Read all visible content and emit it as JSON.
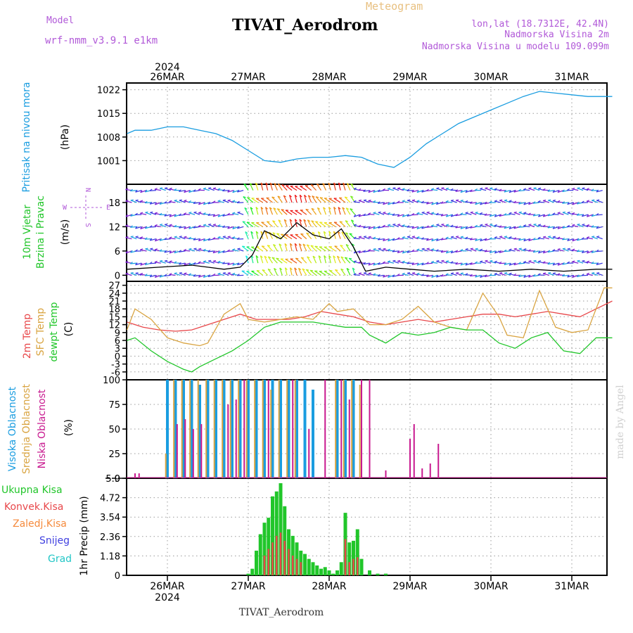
{
  "header": {
    "model_label": "Model",
    "model_name": "wrf-nmm_v3.9.1  e1km",
    "meteogram_label": "Meteogram",
    "title": "TIVAT_Aerodrom",
    "lonlat": "lon,lat (18.7312E, 42.4N)",
    "elev": "Nadmorska Visina 2m",
    "model_elev": "Nadmorska Visina u modelu 109.099m",
    "footer_title": "TIVAT_Aerodrom",
    "watermark": "made by Angel"
  },
  "colors": {
    "pressure": "#1a9de0",
    "wind_speed": "#000000",
    "t2m": "#e8474a",
    "tsfc": "#d9a441",
    "dewpt": "#21c62a",
    "cloud_high": "#1a9de0",
    "cloud_mid": "#d9a441",
    "cloud_low": "#c8198f",
    "precip_total": "#21c62a",
    "precip_conv": "#e8474a",
    "precip_ice": "#f58a3c",
    "precip_snow": "#4040e0",
    "precip_grad": "#21c6c6"
  },
  "xaxis": {
    "top_year": "2024",
    "bottom_year": "2024",
    "day_labels": [
      "26MAR",
      "27MAR",
      "28MAR",
      "29MAR",
      "30MAR",
      "31MAR"
    ]
  },
  "legend_icon": {
    "n": "N",
    "s": "S",
    "w": "W",
    "e": "E"
  },
  "chart_data": [
    {
      "type": "line",
      "id": "pressure",
      "ylabel_main": "Pritisak na nivou mora",
      "ylabel_unit": "(hPa)",
      "ylim": [
        994,
        1024
      ],
      "yticks": [
        "1001",
        "1008",
        "1015",
        "1022"
      ],
      "series": [
        {
          "x": [
            0,
            0.1,
            0.3,
            0.5,
            0.7,
            0.9,
            1.1,
            1.3,
            1.5,
            1.7,
            1.9,
            2.1,
            2.3,
            2.5,
            2.7,
            2.9,
            3.1,
            3.3,
            3.5,
            3.7,
            3.9,
            4.1,
            4.3,
            4.5,
            4.7,
            4.9,
            5.1,
            5.3,
            5.5,
            5.7,
            5.9,
            6.0
          ],
          "y": [
            1009,
            1010,
            1010,
            1011,
            1011,
            1010,
            1009,
            1007,
            1004,
            1001,
            1000.5,
            1001.5,
            1002,
            1002,
            1002.5,
            1002,
            1000,
            999,
            1002,
            1006,
            1009,
            1012,
            1014,
            1016,
            1018,
            1020,
            1021.5,
            1021,
            1020.5,
            1020,
            1020,
            1020
          ]
        }
      ]
    },
    {
      "type": "line",
      "id": "wind",
      "ylabel_main": "10m Vjetar",
      "ylabel_sub": "Brzina i Pravac",
      "ylabel_unit": "(m/s)",
      "ylim": [
        -1.5,
        22.5
      ],
      "yticks": [
        "0",
        "6",
        "12",
        "18"
      ],
      "series": [
        {
          "x": [
            0,
            0.4,
            0.8,
            1.0,
            1.2,
            1.4,
            1.55,
            1.7,
            1.9,
            2.1,
            2.3,
            2.5,
            2.65,
            2.8,
            2.95,
            3.2,
            3.5,
            3.8,
            4.2,
            4.6,
            5.0,
            5.4,
            5.8,
            6.0
          ],
          "y": [
            1.5,
            2,
            2.5,
            2,
            1.5,
            2,
            5,
            11,
            9,
            13,
            10,
            9,
            11.5,
            7,
            1,
            2,
            1.5,
            1,
            1.5,
            1,
            1.5,
            1,
            1.5,
            1.5
          ]
        }
      ]
    },
    {
      "type": "line",
      "id": "temp",
      "ylabel_main": "2m Temp",
      "ylabel_sfc": "SFC Temp",
      "ylabel_dew": "dewpt Temp",
      "ylabel_unit": "(C)",
      "ylim": [
        -9,
        28.5
      ],
      "yticks": [
        "-6",
        "-3",
        "0",
        "3",
        "6",
        "9",
        "12",
        "15",
        "18",
        "21",
        "24",
        "27"
      ],
      "series": [
        {
          "x": [
            0,
            0.2,
            0.4,
            0.6,
            0.8,
            1.0,
            1.2,
            1.4,
            1.6,
            1.8,
            2.0,
            2.2,
            2.4,
            2.6,
            2.8,
            3.0,
            3.2,
            3.4,
            3.6,
            3.8,
            4.0,
            4.2,
            4.4,
            4.6,
            4.8,
            5.0,
            5.2,
            5.4,
            5.6,
            5.8,
            6.0
          ],
          "y": [
            13,
            11,
            10,
            9.5,
            10,
            12,
            14,
            16,
            14,
            14,
            14,
            15,
            17,
            16,
            15,
            13,
            12,
            13,
            14,
            13,
            14,
            15,
            16,
            16,
            15,
            16,
            17,
            16,
            15,
            18,
            21
          ]
        },
        {
          "x": [
            0,
            0.1,
            0.3,
            0.5,
            0.7,
            0.9,
            1.0,
            1.2,
            1.4,
            1.5,
            1.7,
            1.9,
            2.1,
            2.3,
            2.5,
            2.6,
            2.8,
            3.0,
            3.2,
            3.4,
            3.6,
            3.8,
            4.0,
            4.2,
            4.4,
            4.6,
            4.7,
            4.9,
            5.1,
            5.3,
            5.5,
            5.7,
            5.9,
            6.0
          ],
          "y": [
            10,
            18,
            14,
            7,
            5,
            4,
            5,
            16,
            20,
            14,
            13,
            14,
            15,
            14,
            20,
            17,
            18,
            12,
            12,
            14,
            19,
            13,
            11,
            10,
            24,
            15,
            8,
            7,
            25,
            11,
            9,
            10,
            26,
            26
          ]
        },
        {
          "x": [
            0,
            0.1,
            0.3,
            0.5,
            0.7,
            0.8,
            0.9,
            1.1,
            1.3,
            1.5,
            1.7,
            1.9,
            2.1,
            2.3,
            2.5,
            2.7,
            2.9,
            3.0,
            3.2,
            3.4,
            3.6,
            3.8,
            4.0,
            4.2,
            4.4,
            4.6,
            4.8,
            5.0,
            5.2,
            5.4,
            5.6,
            5.8,
            6.0
          ],
          "y": [
            6,
            7,
            2,
            -2,
            -5,
            -6,
            -4,
            -1,
            2,
            6,
            11,
            13,
            13,
            13,
            12,
            11,
            11,
            8,
            5,
            9,
            8,
            9,
            11,
            10,
            10,
            5,
            3,
            7,
            9,
            2,
            1,
            7,
            7
          ]
        }
      ]
    },
    {
      "type": "bar",
      "id": "clouds",
      "ylabel_high": "Visoka Oblacnost",
      "ylabel_mid": "Srednja Oblacnost",
      "ylabel_low": "Niska Oblacnost",
      "ylabel_unit": "(%)",
      "ylim": [
        0,
        100
      ],
      "yticks": [
        "0",
        "25",
        "50",
        "75",
        "100"
      ],
      "series": [
        {
          "name": "Visoka Oblacnost",
          "x": [
            0.5,
            0.6,
            0.7,
            0.8,
            0.9,
            1.0,
            1.1,
            1.2,
            1.3,
            1.4,
            1.5,
            1.6,
            1.7,
            1.8,
            1.9,
            2.0,
            2.1,
            2.2,
            2.3,
            2.6,
            2.7,
            2.8
          ],
          "values": [
            100,
            100,
            100,
            100,
            95,
            100,
            100,
            100,
            100,
            100,
            100,
            100,
            100,
            100,
            100,
            100,
            100,
            100,
            90,
            100,
            100,
            100
          ]
        },
        {
          "name": "Srednja Oblacnost",
          "x": [
            0.48,
            0.58,
            0.68,
            0.78,
            0.88,
            0.98,
            1.08,
            1.18,
            1.28,
            1.38,
            1.48,
            1.58,
            1.68,
            1.78,
            1.88,
            1.98,
            2.08,
            2.58,
            2.68,
            2.78,
            2.88
          ],
          "values": [
            25,
            100,
            100,
            100,
            100,
            100,
            100,
            100,
            100,
            100,
            100,
            100,
            100,
            90,
            100,
            100,
            100,
            100,
            100,
            100,
            95
          ]
        },
        {
          "name": "Niska Oblacnost",
          "x": [
            0.1,
            0.15,
            0.62,
            0.72,
            0.82,
            0.92,
            1.25,
            1.35,
            1.45,
            1.75,
            2.05,
            2.25,
            2.45,
            2.65,
            2.75,
            2.9,
            3.0,
            3.2,
            3.5,
            3.55,
            3.65,
            3.75,
            3.85
          ],
          "values": [
            5,
            5,
            55,
            60,
            50,
            55,
            75,
            80,
            100,
            100,
            100,
            50,
            100,
            100,
            80,
            100,
            100,
            8,
            40,
            55,
            10,
            15,
            35
          ]
        }
      ]
    },
    {
      "type": "bar",
      "id": "precip",
      "legend": [
        "Ukupna  Kisa",
        "Konvek.Kisa",
        "Zaledj.Kisa",
        "Snijeg",
        "Grad"
      ],
      "ylabel_main": "1hr Precip",
      "ylabel_unit": "(mm)",
      "ylim": [
        0,
        5.9
      ],
      "yticks": [
        "0",
        "1.18",
        "2.36",
        "3.54",
        "4.72",
        "5.9"
      ],
      "series": [
        {
          "name": "Ukupna  Kisa",
          "x": [
            1.5,
            1.55,
            1.6,
            1.65,
            1.7,
            1.75,
            1.8,
            1.85,
            1.9,
            1.95,
            2.0,
            2.05,
            2.1,
            2.15,
            2.2,
            2.25,
            2.3,
            2.35,
            2.4,
            2.45,
            2.5,
            2.55,
            2.6,
            2.65,
            2.7,
            2.75,
            2.8,
            2.85,
            2.9,
            3.0,
            3.1,
            3.2
          ],
          "values": [
            0.1,
            0.4,
            1.5,
            2.5,
            3.2,
            3.5,
            4.8,
            5.1,
            5.6,
            4.2,
            2.8,
            2.4,
            2.0,
            1.5,
            1.3,
            1.0,
            0.8,
            0.6,
            0.4,
            0.5,
            0.3,
            0.1,
            0.3,
            0.8,
            3.8,
            2.0,
            2.1,
            2.8,
            1.0,
            0.3,
            0.1,
            0.1
          ]
        },
        {
          "name": "Konvek.Kisa",
          "x": [
            1.7,
            1.75,
            1.8,
            1.85,
            1.9,
            1.95,
            2.0,
            2.05,
            2.1,
            2.15,
            2.7,
            2.75,
            2.8,
            2.85
          ],
          "values": [
            1.2,
            1.6,
            2.0,
            2.4,
            2.6,
            2.1,
            1.6,
            1.2,
            1.0,
            0.8,
            2.2,
            0.8,
            1.0,
            1.1
          ]
        },
        {
          "name": "Zaledj.Kisa",
          "x": [],
          "values": []
        },
        {
          "name": "Snijeg",
          "x": [],
          "values": []
        },
        {
          "name": "Grad",
          "x": [],
          "values": []
        }
      ]
    }
  ]
}
